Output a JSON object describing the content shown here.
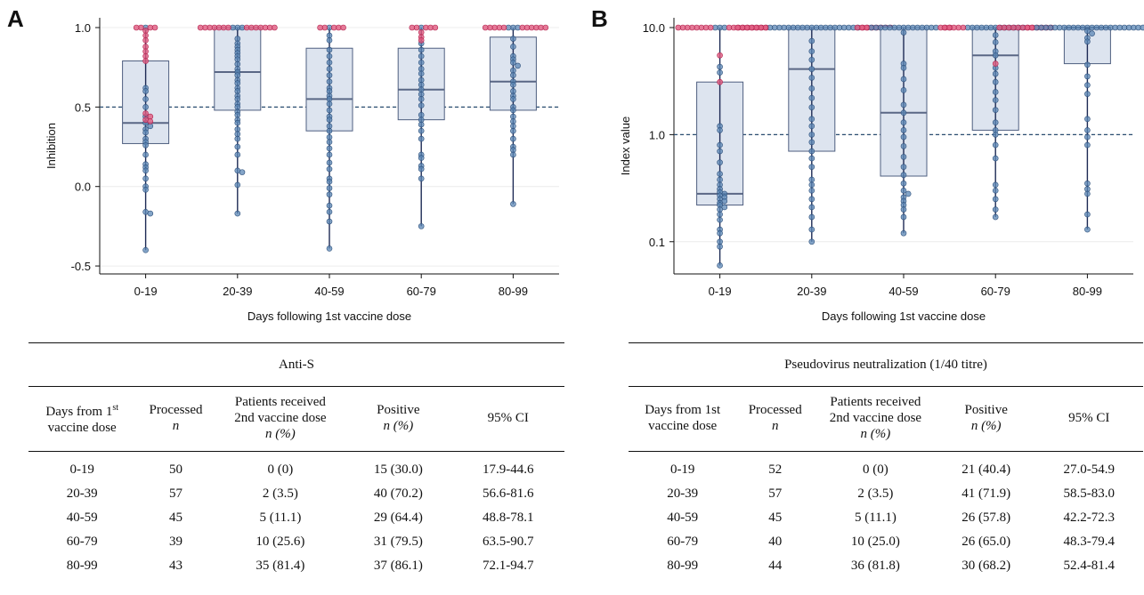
{
  "chart_data": [
    {
      "type": "box-strip",
      "panel": "A",
      "title": "",
      "xlabel": "Days following 1st vaccine dose",
      "ylabel": "Inhibition",
      "y_scale": "linear",
      "ylim": [
        -0.55,
        1.0
      ],
      "yticks": [
        "1.0",
        "0.5",
        "0.0",
        "-0.5"
      ],
      "ytick_values": [
        1.0,
        0.5,
        0.0,
        -0.5
      ],
      "threshold": 0.5,
      "categories": [
        "0-19",
        "20-39",
        "40-59",
        "60-79",
        "80-99"
      ],
      "series": [
        {
          "category": "0-19",
          "q1": 0.27,
          "median": 0.4,
          "q3": 0.79,
          "whisker_low": -0.4,
          "whisker_high": 1.0,
          "blue_points": [
            1.0,
            0.62,
            0.6,
            0.55,
            0.5,
            0.44,
            0.4,
            0.38,
            0.36,
            0.34,
            0.3,
            0.28,
            0.26,
            0.2,
            0.14,
            0.12,
            0.1,
            0.05,
            0.0,
            -0.02,
            -0.16,
            -0.17,
            -0.4
          ],
          "red_points": [
            1.0,
            1.0,
            1.0,
            1.0,
            0.98,
            0.95,
            0.92,
            0.88,
            0.85,
            0.82,
            0.79,
            0.46,
            0.44,
            0.42,
            0.41
          ]
        },
        {
          "category": "20-39",
          "q1": 0.48,
          "median": 0.72,
          "q3": 1.0,
          "whisker_low": -0.17,
          "whisker_high": 1.0,
          "blue_points": [
            1.0,
            1.0,
            1.0,
            0.93,
            0.9,
            0.88,
            0.86,
            0.84,
            0.82,
            0.8,
            0.77,
            0.74,
            0.72,
            0.7,
            0.67,
            0.65,
            0.62,
            0.6,
            0.57,
            0.55,
            0.52,
            0.5,
            0.47,
            0.45,
            0.42,
            0.4,
            0.36,
            0.33,
            0.3,
            0.25,
            0.2,
            0.1,
            0.09,
            0.01,
            -0.17
          ],
          "red_points": [
            1.0,
            1.0,
            1.0,
            1.0,
            1.0,
            1.0,
            1.0,
            1.0,
            1.0,
            1.0,
            1.0,
            1.0,
            1.0,
            1.0
          ]
        },
        {
          "category": "40-59",
          "q1": 0.35,
          "median": 0.55,
          "q3": 0.87,
          "whisker_low": -0.39,
          "whisker_high": 1.0,
          "blue_points": [
            1.0,
            0.95,
            0.92,
            0.86,
            0.82,
            0.78,
            0.74,
            0.7,
            0.66,
            0.62,
            0.6,
            0.57,
            0.55,
            0.52,
            0.48,
            0.44,
            0.42,
            0.38,
            0.35,
            0.31,
            0.28,
            0.24,
            0.2,
            0.15,
            0.11,
            0.05,
            0.03,
            -0.01,
            -0.05,
            -0.12,
            -0.16,
            -0.22,
            -0.39
          ],
          "red_points": [
            1.0,
            1.0,
            1.0,
            1.0,
            1.0
          ]
        },
        {
          "category": "60-79",
          "q1": 0.42,
          "median": 0.61,
          "q3": 0.87,
          "whisker_low": -0.25,
          "whisker_high": 1.0,
          "blue_points": [
            1.0,
            0.9,
            0.86,
            0.82,
            0.78,
            0.74,
            0.71,
            0.67,
            0.64,
            0.61,
            0.58,
            0.55,
            0.51,
            0.45,
            0.42,
            0.39,
            0.35,
            0.3,
            0.2,
            0.18,
            0.13,
            0.11,
            0.05,
            -0.25
          ],
          "red_points": [
            1.0,
            1.0,
            1.0,
            1.0,
            1.0,
            0.97,
            0.94,
            0.92
          ]
        },
        {
          "category": "80-99",
          "q1": 0.48,
          "median": 0.66,
          "q3": 0.94,
          "whisker_low": -0.11,
          "whisker_high": 1.0,
          "blue_points": [
            1.0,
            1.0,
            1.0,
            0.93,
            0.88,
            0.82,
            0.8,
            0.78,
            0.76,
            0.73,
            0.7,
            0.66,
            0.64,
            0.6,
            0.57,
            0.55,
            0.5,
            0.48,
            0.44,
            0.41,
            0.38,
            0.35,
            0.3,
            0.25,
            0.23,
            0.2,
            -0.11
          ],
          "red_points": [
            1.0,
            1.0,
            1.0,
            1.0,
            1.0,
            1.0,
            1.0,
            1.0,
            1.0,
            1.0,
            1.0
          ]
        }
      ]
    },
    {
      "type": "box-strip",
      "panel": "B",
      "title": "",
      "xlabel": "Days following 1st vaccine dose",
      "ylabel": "Index value",
      "y_scale": "log",
      "ylim": [
        0.05,
        10.0
      ],
      "yticks": [
        "10.0",
        "1.0",
        "0.1"
      ],
      "ytick_values": [
        10.0,
        1.0,
        0.1
      ],
      "threshold": 1.0,
      "categories": [
        "0-19",
        "20-39",
        "40-59",
        "60-79",
        "80-99"
      ],
      "series": [
        {
          "category": "0-19",
          "q1": 0.22,
          "median": 0.28,
          "q3": 3.1,
          "whisker_low": 0.06,
          "whisker_high": 10.0,
          "blue_points": [
            10.0,
            10.0,
            10.0,
            4.3,
            3.8,
            1.2,
            1.1,
            0.8,
            0.7,
            0.55,
            0.43,
            0.38,
            0.34,
            0.31,
            0.29,
            0.28,
            0.27,
            0.26,
            0.25,
            0.24,
            0.23,
            0.22,
            0.21,
            0.2,
            0.18,
            0.16,
            0.13,
            0.12,
            0.1,
            0.09,
            0.06
          ],
          "red_points": [
            10.0,
            10.0,
            10.0,
            10.0,
            10.0,
            10.0,
            10.0,
            10.0,
            10.0,
            10.0,
            10.0,
            10.0,
            10.0,
            10.0,
            10.0,
            10.0,
            10.0,
            5.5,
            3.1
          ]
        },
        {
          "category": "20-39",
          "q1": 0.7,
          "median": 4.1,
          "q3": 10.0,
          "whisker_low": 0.1,
          "whisker_high": 10.0,
          "blue_points": [
            10.0,
            10.0,
            10.0,
            10.0,
            10.0,
            10.0,
            10.0,
            10.0,
            10.0,
            10.0,
            10.0,
            10.0,
            10.0,
            10.0,
            10.0,
            10.0,
            10.0,
            10.0,
            10.0,
            10.0,
            7.5,
            6.0,
            5.0,
            4.1,
            3.4,
            2.7,
            2.2,
            1.8,
            1.4,
            1.2,
            1.0,
            0.85,
            0.7,
            0.6,
            0.5,
            0.38,
            0.34,
            0.3,
            0.25,
            0.21,
            0.17,
            0.13,
            0.1
          ],
          "red_points": [
            10.0,
            10.0,
            10.0,
            10.0,
            10.0,
            10.0,
            10.0,
            10.0,
            10.0,
            10.0,
            10.0,
            10.0,
            10.0,
            10.0
          ]
        },
        {
          "category": "40-59",
          "q1": 0.41,
          "median": 1.6,
          "q3": 10.0,
          "whisker_low": 0.12,
          "whisker_high": 10.0,
          "blue_points": [
            10.0,
            10.0,
            10.0,
            10.0,
            10.0,
            10.0,
            10.0,
            10.0,
            10.0,
            10.0,
            10.0,
            10.0,
            10.0,
            10.0,
            10.0,
            9.0,
            4.6,
            4.2,
            3.3,
            2.6,
            1.9,
            1.6,
            1.3,
            1.1,
            0.95,
            0.78,
            0.62,
            0.5,
            0.42,
            0.35,
            0.3,
            0.28,
            0.26,
            0.24,
            0.22,
            0.2,
            0.17,
            0.12
          ],
          "red_points": [
            10.0,
            10.0,
            10.0,
            10.0,
            10.0,
            10.0
          ]
        },
        {
          "category": "60-79",
          "q1": 1.1,
          "median": 5.5,
          "q3": 10.0,
          "whisker_low": 0.17,
          "whisker_high": 10.0,
          "blue_points": [
            10.0,
            10.0,
            10.0,
            10.0,
            10.0,
            10.0,
            10.0,
            10.0,
            10.0,
            10.0,
            10.0,
            10.0,
            10.0,
            8.5,
            7.3,
            6.0,
            5.5,
            4.2,
            3.7,
            3.1,
            2.5,
            2.1,
            1.7,
            1.3,
            1.1,
            1.0,
            0.8,
            0.6,
            0.34,
            0.3,
            0.25,
            0.2,
            0.17
          ],
          "red_points": [
            10.0,
            10.0,
            10.0,
            10.0,
            10.0,
            10.0,
            10.0,
            10.0,
            10.0,
            10.0,
            10.0,
            4.6
          ]
        },
        {
          "category": "80-99",
          "q1": 4.6,
          "median": 10.0,
          "q3": 10.0,
          "whisker_low": 0.13,
          "whisker_high": 10.0,
          "blue_points": [
            10.0,
            10.0,
            10.0,
            10.0,
            10.0,
            10.0,
            10.0,
            10.0,
            10.0,
            10.0,
            10.0,
            10.0,
            10.0,
            10.0,
            10.0,
            10.0,
            10.0,
            10.0,
            10.0,
            10.0,
            10.0,
            10.0,
            10.0,
            10.0,
            9.3,
            8.8,
            8.0,
            7.4,
            4.5,
            3.5,
            2.9,
            2.4,
            1.4,
            1.1,
            0.95,
            0.8,
            0.35,
            0.31,
            0.28,
            0.18,
            0.13
          ],
          "red_points": [
            10.0,
            10.0,
            10.0,
            10.0,
            10.0,
            10.0,
            10.0,
            10.0,
            10.0,
            10.0,
            10.0,
            10.0,
            10.0,
            10.0,
            10.0
          ]
        }
      ]
    }
  ],
  "colors": {
    "blue_point": "#5b87b5",
    "blue_point_stroke": "#2d4f7a",
    "red_point": "#e05a80",
    "red_point_stroke": "#b3234e",
    "box_fill": "#dde4ef",
    "box_stroke": "#4f5f80",
    "median_line": "#5a6785",
    "whisker": "#1e2b55",
    "dashed": "#2a4d70",
    "gridline": "#ececec"
  },
  "panel_labels": {
    "a": "A",
    "b": "B"
  },
  "tables": {
    "anti_s": {
      "title": "Anti-S",
      "headers": {
        "days_main": "Days from 1",
        "days_sup": "st",
        "days_rest": "vaccine dose",
        "processed": "Processed",
        "processed_n": "n",
        "received_1": "Patients received",
        "received_2": "2nd vaccine dose",
        "received_3": "n (%)",
        "positive": "Positive",
        "positive_n": "n (%)",
        "ci": "95% CI"
      },
      "rows": [
        {
          "days": "0-19",
          "processed": "50",
          "received": "0 (0)",
          "positive": "15 (30.0)",
          "ci": "17.9-44.6"
        },
        {
          "days": "20-39",
          "processed": "57",
          "received": "2 (3.5)",
          "positive": "40 (70.2)",
          "ci": "56.6-81.6"
        },
        {
          "days": "40-59",
          "processed": "45",
          "received": "5 (11.1)",
          "positive": "29 (64.4)",
          "ci": "48.8-78.1"
        },
        {
          "days": "60-79",
          "processed": "39",
          "received": "10 (25.6)",
          "positive": "31 (79.5)",
          "ci": "63.5-90.7"
        },
        {
          "days": "80-99",
          "processed": "43",
          "received": "35 (81.4)",
          "positive": "37 (86.1)",
          "ci": "72.1-94.7"
        }
      ]
    },
    "pseudovirus": {
      "title": "Pseudovirus neutralization (1/40 titre)",
      "headers": {
        "days_1": "Days from 1st",
        "days_2": "vaccine dose",
        "processed": "Processed",
        "processed_n": "n",
        "received_1": "Patients received",
        "received_2": "2nd vaccine dose",
        "received_3": "n (%)",
        "positive": "Positive",
        "positive_n": "n (%)",
        "ci": "95% CI"
      },
      "rows": [
        {
          "days": "0-19",
          "processed": "52",
          "received": "0 (0)",
          "positive": "21 (40.4)",
          "ci": "27.0-54.9"
        },
        {
          "days": "20-39",
          "processed": "57",
          "received": "2 (3.5)",
          "positive": "41 (71.9)",
          "ci": "58.5-83.0"
        },
        {
          "days": "40-59",
          "processed": "45",
          "received": "5 (11.1)",
          "positive": "26 (57.8)",
          "ci": "42.2-72.3"
        },
        {
          "days": "60-79",
          "processed": "40",
          "received": "10 (25.0)",
          "positive": "26 (65.0)",
          "ci": "48.3-79.4"
        },
        {
          "days": "80-99",
          "processed": "44",
          "received": "36 (81.8)",
          "positive": "30 (68.2)",
          "ci": "52.4-81.4"
        }
      ]
    }
  }
}
